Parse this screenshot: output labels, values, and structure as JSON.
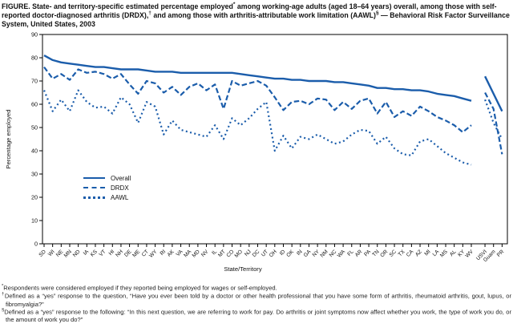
{
  "figure": {
    "title_parts": [
      {
        "t": "FIGURE. State- and territory-specific estimated percentage employed"
      },
      {
        "sup": "*"
      },
      {
        "t": " among working-age adults (aged 18–64 years) overall, among those with self-reported doctor-diagnosed arthritis (DRDX),"
      },
      {
        "sup": "†"
      },
      {
        "t": " and among those with arthritis-attributable work limitation (AAWL)"
      },
      {
        "sup": "§"
      },
      {
        "t": " — Behavioral Risk Factor Surveillance System, United States, 2003"
      }
    ],
    "footnotes": [
      {
        "marker": "*",
        "text": "Respondents were considered employed if they reported being employed for wages or self-employed."
      },
      {
        "marker": "†",
        "text": "Defined as a “yes” response to the question, “Have you ever been told by a doctor or other health professional that you have some form of arthritis, rheumatoid arthritis, gout, lupus, or fibromyalgia?”"
      },
      {
        "marker": "§",
        "text": "Defined as a “yes” response to the following: “In this next question, we are referring to work for pay. Do arthritis or joint symptoms now affect whether you work, the type of work you do, or the amount of work you do?”"
      }
    ]
  },
  "chart_data": {
    "type": "line",
    "title": "",
    "xlabel": "State/Territory",
    "ylabel": "Percentage employed",
    "ylim": [
      0,
      90
    ],
    "yticks": [
      0,
      10,
      20,
      30,
      40,
      50,
      60,
      70,
      80,
      90
    ],
    "grid": false,
    "legend_position": "inside-left",
    "line_color": "#1b5dab",
    "gap_after_index": 50,
    "categories": [
      "SD",
      "WI",
      "NE",
      "MN",
      "ND",
      "IA",
      "KS",
      "VT",
      "HI",
      "NH",
      "DE",
      "ME",
      "CT",
      "WY",
      "RI",
      "AK",
      "VA",
      "MA",
      "MD",
      "NV",
      "IL",
      "MT",
      "CO",
      "MO",
      "NJ",
      "DC",
      "UT",
      "OH",
      "ID",
      "OK",
      "IN",
      "GA",
      "NY",
      "NM",
      "NC",
      "WA",
      "FL",
      "AR",
      "PA",
      "TN",
      "OR",
      "SC",
      "TX",
      "CA",
      "AZ",
      "MI",
      "LA",
      "MS",
      "AL",
      "KY",
      "WV",
      "USVI",
      "Guam",
      "PR"
    ],
    "series": [
      {
        "name": "Overall",
        "style": "solid",
        "values": [
          81,
          79,
          78,
          77.5,
          77,
          76.5,
          76,
          76,
          75.5,
          75,
          75,
          75,
          74.5,
          74,
          74,
          74,
          73.5,
          73.5,
          73.5,
          73.5,
          73.5,
          73.5,
          73.5,
          73,
          72.5,
          72,
          71.5,
          71,
          71,
          70.5,
          70.5,
          70,
          70,
          70,
          69.5,
          69.5,
          69,
          68.5,
          68,
          67,
          67,
          66.5,
          66.5,
          66,
          66,
          65.5,
          64.5,
          64,
          63.5,
          62.5,
          61.5,
          72,
          64.5,
          57
        ]
      },
      {
        "name": "DRDX",
        "style": "dashed",
        "values": [
          76,
          71,
          73,
          70.5,
          75,
          73.5,
          74,
          73,
          71,
          73,
          68.5,
          64.5,
          70,
          69,
          65,
          67.5,
          64,
          67.5,
          69,
          66,
          68.5,
          58,
          70,
          68,
          69,
          70,
          68,
          63,
          57.5,
          61,
          61.5,
          60,
          62.5,
          62,
          57.5,
          61,
          58,
          61.5,
          62.5,
          56,
          61,
          54.5,
          57,
          55,
          59,
          57,
          54.5,
          53,
          51,
          48,
          51,
          65,
          58,
          38.5
        ]
      },
      {
        "name": "AAWL",
        "style": "dotted",
        "values": [
          66,
          57,
          62,
          57,
          66,
          61,
          58.5,
          59,
          56,
          63,
          60,
          52,
          61,
          59,
          47,
          53,
          49,
          48,
          47,
          46,
          51,
          45,
          54,
          51,
          54,
          58,
          61,
          40,
          46.5,
          41,
          46,
          45,
          47,
          45,
          43,
          44,
          47,
          49,
          48.5,
          43,
          46,
          41,
          38.5,
          38,
          44,
          45,
          42,
          39,
          37,
          35,
          34,
          62,
          52,
          45
        ]
      }
    ]
  }
}
